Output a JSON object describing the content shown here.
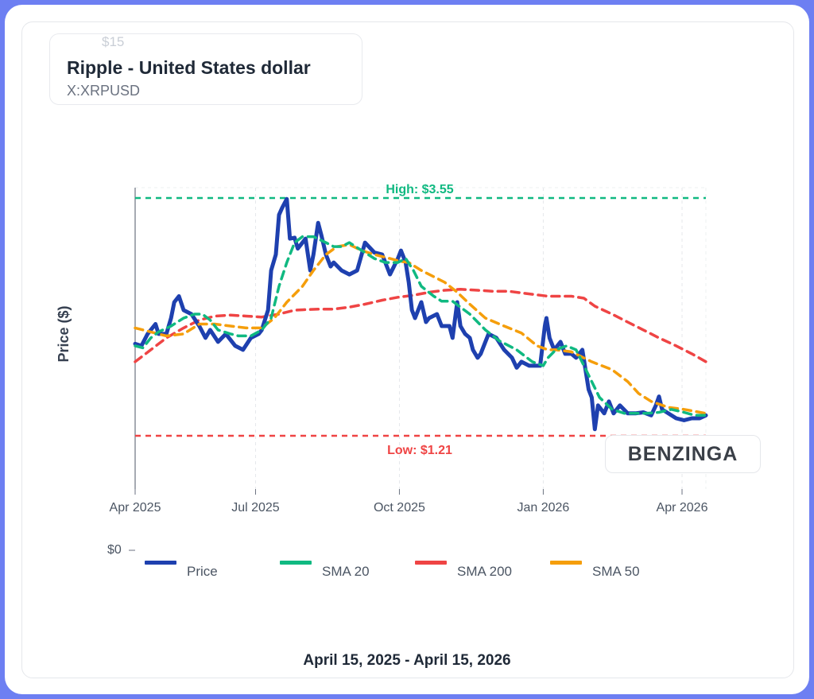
{
  "header": {
    "title": "Ripple - United States dollar",
    "ticker": "X:XRPUSD",
    "ghost_tick": "$15"
  },
  "footer": {
    "date_range": "April 15, 2025 - April 15, 2026"
  },
  "watermark": "BENZINGA",
  "colors": {
    "price": "#1e40af",
    "sma20": "#10b981",
    "sma200": "#ef4444",
    "sma50": "#f59e0b",
    "frame": "#6d7ff2"
  },
  "chart_data": {
    "type": "line",
    "ylabel": "Price ($)",
    "y_zero_label": "$0",
    "x_ticks": [
      {
        "date": "2025-04-15",
        "label": "Apr 2025"
      },
      {
        "date": "2025-07-01",
        "label": "Jul 2025"
      },
      {
        "date": "2025-10-01",
        "label": "Oct 2025"
      },
      {
        "date": "2026-01-01",
        "label": "Jan 2026"
      },
      {
        "date": "2026-04-01",
        "label": "Apr 2026"
      }
    ],
    "xlim": [
      "2025-04-15",
      "2026-04-15"
    ],
    "grid": "vertical dashed",
    "legend_position": "bottom",
    "high": {
      "value": 3.55,
      "label": "High: $3.55"
    },
    "low": {
      "value": 1.21,
      "label": "Low: $1.21"
    },
    "series": [
      {
        "name": "Price",
        "key": "price",
        "dash": false,
        "points": [
          [
            "2025-04-15",
            2.08
          ],
          [
            "2025-04-19",
            2.06
          ],
          [
            "2025-04-23",
            2.18
          ],
          [
            "2025-04-28",
            2.28
          ],
          [
            "2025-04-30",
            2.18
          ],
          [
            "2025-05-05",
            2.18
          ],
          [
            "2025-05-08",
            2.34
          ],
          [
            "2025-05-10",
            2.5
          ],
          [
            "2025-05-13",
            2.56
          ],
          [
            "2025-05-16",
            2.42
          ],
          [
            "2025-05-21",
            2.38
          ],
          [
            "2025-05-26",
            2.26
          ],
          [
            "2025-05-30",
            2.14
          ],
          [
            "2025-06-02",
            2.22
          ],
          [
            "2025-06-07",
            2.1
          ],
          [
            "2025-06-12",
            2.18
          ],
          [
            "2025-06-18",
            2.06
          ],
          [
            "2025-06-23",
            2.02
          ],
          [
            "2025-06-28",
            2.14
          ],
          [
            "2025-07-03",
            2.18
          ],
          [
            "2025-07-05",
            2.22
          ],
          [
            "2025-07-09",
            2.42
          ],
          [
            "2025-07-11",
            2.82
          ],
          [
            "2025-07-14",
            2.98
          ],
          [
            "2025-07-16",
            3.38
          ],
          [
            "2025-07-18",
            3.45
          ],
          [
            "2025-07-21",
            3.54
          ],
          [
            "2025-07-23",
            3.14
          ],
          [
            "2025-07-26",
            3.15
          ],
          [
            "2025-07-28",
            3.04
          ],
          [
            "2025-08-02",
            3.14
          ],
          [
            "2025-08-05",
            2.82
          ],
          [
            "2025-08-07",
            2.98
          ],
          [
            "2025-08-10",
            3.3
          ],
          [
            "2025-08-12",
            3.18
          ],
          [
            "2025-08-15",
            2.98
          ],
          [
            "2025-08-18",
            2.86
          ],
          [
            "2025-08-20",
            2.9
          ],
          [
            "2025-08-25",
            2.82
          ],
          [
            "2025-08-30",
            2.78
          ],
          [
            "2025-09-04",
            2.82
          ],
          [
            "2025-09-09",
            3.1
          ],
          [
            "2025-09-15",
            3.0
          ],
          [
            "2025-09-20",
            2.98
          ],
          [
            "2025-09-25",
            2.78
          ],
          [
            "2025-09-30",
            2.94
          ],
          [
            "2025-10-02",
            3.02
          ],
          [
            "2025-10-05",
            2.9
          ],
          [
            "2025-10-07",
            2.7
          ],
          [
            "2025-10-09",
            2.42
          ],
          [
            "2025-10-11",
            2.34
          ],
          [
            "2025-10-15",
            2.5
          ],
          [
            "2025-10-18",
            2.3
          ],
          [
            "2025-10-20",
            2.34
          ],
          [
            "2025-10-25",
            2.38
          ],
          [
            "2025-10-28",
            2.26
          ],
          [
            "2025-11-02",
            2.26
          ],
          [
            "2025-11-04",
            2.14
          ],
          [
            "2025-11-07",
            2.5
          ],
          [
            "2025-11-09",
            2.26
          ],
          [
            "2025-11-12",
            2.18
          ],
          [
            "2025-11-15",
            2.14
          ],
          [
            "2025-11-17",
            2.02
          ],
          [
            "2025-11-20",
            1.94
          ],
          [
            "2025-11-22",
            1.98
          ],
          [
            "2025-11-25",
            2.1
          ],
          [
            "2025-11-27",
            2.18
          ],
          [
            "2025-12-02",
            2.14
          ],
          [
            "2025-12-07",
            2.02
          ],
          [
            "2025-12-12",
            1.94
          ],
          [
            "2025-12-15",
            1.84
          ],
          [
            "2025-12-18",
            1.9
          ],
          [
            "2025-12-23",
            1.86
          ],
          [
            "2025-12-28",
            1.86
          ],
          [
            "2025-12-30",
            1.86
          ],
          [
            "2026-01-02",
            2.26
          ],
          [
            "2026-01-03",
            2.34
          ],
          [
            "2026-01-05",
            2.14
          ],
          [
            "2026-01-08",
            2.02
          ],
          [
            "2026-01-12",
            2.1
          ],
          [
            "2026-01-15",
            1.98
          ],
          [
            "2026-01-19",
            1.98
          ],
          [
            "2026-01-22",
            1.94
          ],
          [
            "2026-01-26",
            2.02
          ],
          [
            "2026-01-30",
            1.62
          ],
          [
            "2026-02-01",
            1.54
          ],
          [
            "2026-02-03",
            1.22
          ],
          [
            "2026-02-05",
            1.46
          ],
          [
            "2026-02-09",
            1.38
          ],
          [
            "2026-02-12",
            1.5
          ],
          [
            "2026-02-15",
            1.38
          ],
          [
            "2026-02-19",
            1.46
          ],
          [
            "2026-02-24",
            1.38
          ],
          [
            "2026-03-01",
            1.38
          ],
          [
            "2026-03-06",
            1.39
          ],
          [
            "2026-03-11",
            1.36
          ],
          [
            "2026-03-14",
            1.46
          ],
          [
            "2026-03-16",
            1.55
          ],
          [
            "2026-03-18",
            1.42
          ],
          [
            "2026-03-22",
            1.38
          ],
          [
            "2026-03-27",
            1.33
          ],
          [
            "2026-04-01",
            1.31
          ],
          [
            "2026-04-06",
            1.33
          ],
          [
            "2026-04-11",
            1.33
          ],
          [
            "2026-04-15",
            1.36
          ]
        ]
      },
      {
        "name": "SMA 20",
        "key": "sma20",
        "dash": true,
        "points": [
          [
            "2025-04-15",
            2.06
          ],
          [
            "2025-04-20",
            2.04
          ],
          [
            "2025-04-25",
            2.14
          ],
          [
            "2025-04-30",
            2.2
          ],
          [
            "2025-05-08",
            2.26
          ],
          [
            "2025-05-16",
            2.34
          ],
          [
            "2025-05-23",
            2.38
          ],
          [
            "2025-05-28",
            2.38
          ],
          [
            "2025-06-02",
            2.32
          ],
          [
            "2025-06-07",
            2.22
          ],
          [
            "2025-06-15",
            2.18
          ],
          [
            "2025-06-20",
            2.16
          ],
          [
            "2025-06-28",
            2.16
          ],
          [
            "2025-07-05",
            2.22
          ],
          [
            "2025-07-11",
            2.34
          ],
          [
            "2025-07-16",
            2.66
          ],
          [
            "2025-07-21",
            2.9
          ],
          [
            "2025-07-26",
            3.1
          ],
          [
            "2025-07-31",
            3.16
          ],
          [
            "2025-08-07",
            3.16
          ],
          [
            "2025-08-15",
            3.1
          ],
          [
            "2025-08-20",
            3.06
          ],
          [
            "2025-08-25",
            3.06
          ],
          [
            "2025-08-30",
            3.1
          ],
          [
            "2025-09-07",
            3.02
          ],
          [
            "2025-09-15",
            2.94
          ],
          [
            "2025-09-22",
            2.9
          ],
          [
            "2025-09-30",
            2.9
          ],
          [
            "2025-10-05",
            2.94
          ],
          [
            "2025-10-10",
            2.82
          ],
          [
            "2025-10-15",
            2.66
          ],
          [
            "2025-10-23",
            2.56
          ],
          [
            "2025-10-28",
            2.51
          ],
          [
            "2025-11-04",
            2.51
          ],
          [
            "2025-11-15",
            2.38
          ],
          [
            "2025-11-25",
            2.22
          ],
          [
            "2025-12-04",
            2.11
          ],
          [
            "2025-12-15",
            2.02
          ],
          [
            "2025-12-25",
            1.9
          ],
          [
            "2026-01-01",
            1.86
          ],
          [
            "2026-01-04",
            1.94
          ],
          [
            "2026-01-09",
            2.02
          ],
          [
            "2026-01-16",
            2.06
          ],
          [
            "2026-01-22",
            2.02
          ],
          [
            "2026-01-27",
            1.86
          ],
          [
            "2026-02-01",
            1.7
          ],
          [
            "2026-02-06",
            1.54
          ],
          [
            "2026-02-14",
            1.42
          ],
          [
            "2026-02-22",
            1.38
          ],
          [
            "2026-03-01",
            1.38
          ],
          [
            "2026-03-08",
            1.38
          ],
          [
            "2026-03-16",
            1.39
          ],
          [
            "2026-03-24",
            1.42
          ],
          [
            "2026-04-01",
            1.39
          ],
          [
            "2026-04-08",
            1.36
          ],
          [
            "2026-04-15",
            1.36
          ]
        ]
      },
      {
        "name": "SMA 200",
        "key": "sma200",
        "dash": true,
        "points": [
          [
            "2025-04-15",
            1.9
          ],
          [
            "2025-04-25",
            2.02
          ],
          [
            "2025-05-05",
            2.14
          ],
          [
            "2025-05-16",
            2.24
          ],
          [
            "2025-05-26",
            2.32
          ],
          [
            "2025-06-05",
            2.36
          ],
          [
            "2025-06-15",
            2.37
          ],
          [
            "2025-06-25",
            2.36
          ],
          [
            "2025-07-05",
            2.35
          ],
          [
            "2025-07-16",
            2.38
          ],
          [
            "2025-07-26",
            2.42
          ],
          [
            "2025-08-10",
            2.43
          ],
          [
            "2025-08-20",
            2.43
          ],
          [
            "2025-08-30",
            2.45
          ],
          [
            "2025-09-09",
            2.48
          ],
          [
            "2025-09-20",
            2.52
          ],
          [
            "2025-09-30",
            2.55
          ],
          [
            "2025-10-10",
            2.57
          ],
          [
            "2025-10-20",
            2.6
          ],
          [
            "2025-10-30",
            2.62
          ],
          [
            "2025-11-09",
            2.63
          ],
          [
            "2025-11-20",
            2.62
          ],
          [
            "2025-11-30",
            2.61
          ],
          [
            "2025-12-10",
            2.61
          ],
          [
            "2025-12-20",
            2.59
          ],
          [
            "2026-01-04",
            2.56
          ],
          [
            "2026-01-19",
            2.56
          ],
          [
            "2026-01-27",
            2.54
          ],
          [
            "2026-02-03",
            2.46
          ],
          [
            "2026-02-14",
            2.38
          ],
          [
            "2026-02-24",
            2.3
          ],
          [
            "2026-03-06",
            2.22
          ],
          [
            "2026-03-16",
            2.14
          ],
          [
            "2026-03-27",
            2.06
          ],
          [
            "2026-04-06",
            1.98
          ],
          [
            "2026-04-15",
            1.9
          ]
        ]
      },
      {
        "name": "SMA 50",
        "key": "sma50",
        "dash": true,
        "points": [
          [
            "2025-04-15",
            2.24
          ],
          [
            "2025-04-25",
            2.2
          ],
          [
            "2025-05-05",
            2.16
          ],
          [
            "2025-05-16",
            2.18
          ],
          [
            "2025-05-26",
            2.28
          ],
          [
            "2025-06-05",
            2.28
          ],
          [
            "2025-06-15",
            2.26
          ],
          [
            "2025-06-25",
            2.24
          ],
          [
            "2025-07-05",
            2.24
          ],
          [
            "2025-07-13",
            2.34
          ],
          [
            "2025-07-21",
            2.5
          ],
          [
            "2025-07-31",
            2.66
          ],
          [
            "2025-08-07",
            2.82
          ],
          [
            "2025-08-15",
            2.98
          ],
          [
            "2025-08-22",
            3.06
          ],
          [
            "2025-08-30",
            3.08
          ],
          [
            "2025-09-07",
            3.02
          ],
          [
            "2025-09-15",
            2.98
          ],
          [
            "2025-09-25",
            2.94
          ],
          [
            "2025-10-02",
            2.91
          ],
          [
            "2025-10-07",
            2.9
          ],
          [
            "2025-10-15",
            2.82
          ],
          [
            "2025-10-30",
            2.7
          ],
          [
            "2025-11-07",
            2.6
          ],
          [
            "2025-11-15",
            2.48
          ],
          [
            "2025-11-25",
            2.34
          ],
          [
            "2025-12-07",
            2.26
          ],
          [
            "2025-12-18",
            2.19
          ],
          [
            "2025-12-28",
            2.06
          ],
          [
            "2026-01-04",
            2.02
          ],
          [
            "2026-01-09",
            2.02
          ],
          [
            "2026-01-19",
            2.0
          ],
          [
            "2026-02-01",
            1.9
          ],
          [
            "2026-02-14",
            1.82
          ],
          [
            "2026-02-24",
            1.7
          ],
          [
            "2026-03-03",
            1.58
          ],
          [
            "2026-03-11",
            1.5
          ],
          [
            "2026-03-22",
            1.44
          ],
          [
            "2026-04-01",
            1.42
          ],
          [
            "2026-04-15",
            1.38
          ]
        ]
      }
    ],
    "legend_order": [
      "price",
      "sma20",
      "sma200",
      "sma50"
    ]
  }
}
